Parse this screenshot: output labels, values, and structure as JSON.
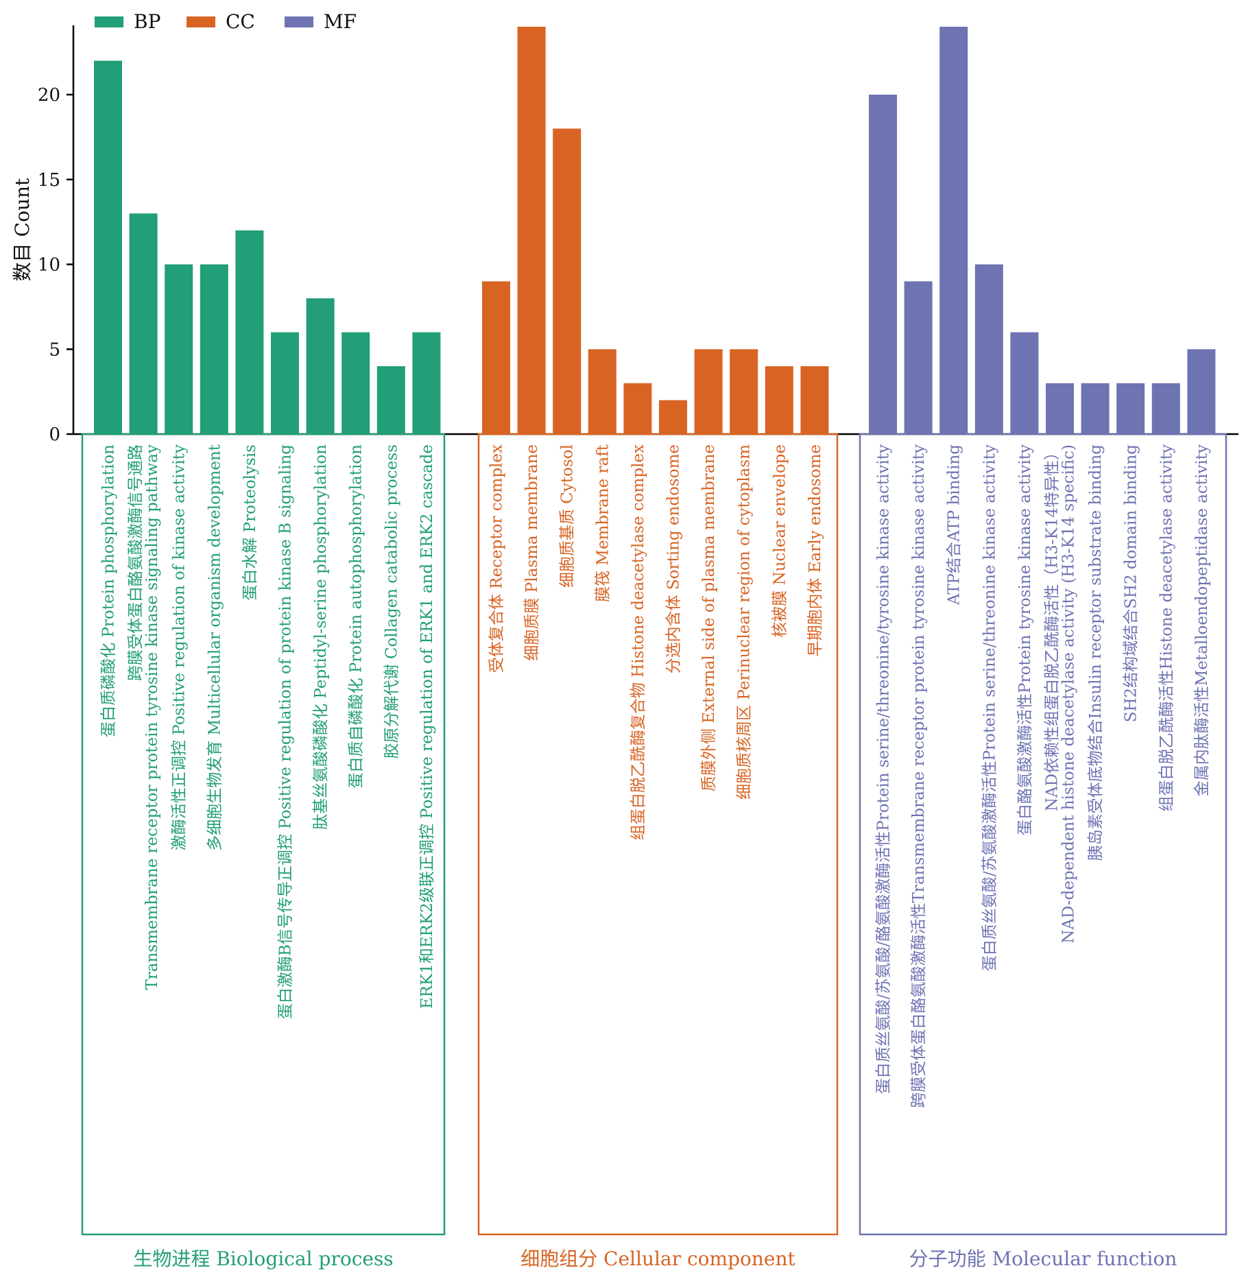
{
  "chart_data": {
    "type": "bar",
    "ylabel": "数目 Count",
    "yticks": [
      0,
      5,
      10,
      15,
      20
    ],
    "ylim": [
      0,
      24
    ],
    "legend": {
      "position": "top-left",
      "items": [
        {
          "label": "BP",
          "color": "#229e78"
        },
        {
          "label": "CC",
          "color": "#d86424"
        },
        {
          "label": "MF",
          "color": "#6e73b2"
        }
      ]
    },
    "groups": [
      {
        "key": "BP",
        "title": "生物进程 Biological process",
        "color": "#229e78",
        "bars": [
          {
            "label": [
              "蛋白质磷酸化 Protein phosphorylation"
            ],
            "value": 22
          },
          {
            "label": [
              "跨膜受体蛋白酪氨酸激酶信号通路",
              "Transmembrane receptor protein tyrosine kinase signaling pathway"
            ],
            "value": 13
          },
          {
            "label": [
              "激酶活性正调控 Positive regulation of kinase activity"
            ],
            "value": 10
          },
          {
            "label": [
              "多细胞生物发育 Multicellular organism development"
            ],
            "value": 10
          },
          {
            "label": [
              "蛋白水解 Proteolysis"
            ],
            "value": 12
          },
          {
            "label": [
              "蛋白激酶B信号传导正调控 Positive regulation of protein kinase B signaling"
            ],
            "value": 6
          },
          {
            "label": [
              "肽基丝氨酸磷酸化 Peptidyl-serine phosphorylation"
            ],
            "value": 8
          },
          {
            "label": [
              "蛋白质自磷酸化 Protein autophosphorylation"
            ],
            "value": 6
          },
          {
            "label": [
              "胶原分解代谢 Collagen catabolic process"
            ],
            "value": 4
          },
          {
            "label": [
              "ERK1和ERK2级联正调控 Positive regulation of ERK1 and ERK2 cascade"
            ],
            "value": 6
          }
        ]
      },
      {
        "key": "CC",
        "title": "细胞组分 Cellular component",
        "color": "#d86424",
        "bars": [
          {
            "label": [
              "受体复合体 Receptor complex"
            ],
            "value": 9
          },
          {
            "label": [
              "细胞质膜 Plasma membrane"
            ],
            "value": 24
          },
          {
            "label": [
              "细胞质基质 Cytosol"
            ],
            "value": 18
          },
          {
            "label": [
              "膜筏 Membrane raft"
            ],
            "value": 5
          },
          {
            "label": [
              "组蛋白脱乙酰酶复合物 Histone deacetylase complex"
            ],
            "value": 3
          },
          {
            "label": [
              "分选内含体 Sorting endosome"
            ],
            "value": 2
          },
          {
            "label": [
              "质膜外侧 External side of plasma membrane"
            ],
            "value": 5
          },
          {
            "label": [
              "细胞质核周区 Perinuclear region of cytoplasm"
            ],
            "value": 5
          },
          {
            "label": [
              "核被膜 Nuclear envelope"
            ],
            "value": 4
          },
          {
            "label": [
              "早期胞内体 Early endosome"
            ],
            "value": 4
          }
        ]
      },
      {
        "key": "MF",
        "title": "分子功能 Molecular function",
        "color": "#6e73b2",
        "bars": [
          {
            "label": [
              "蛋白质丝氨酸/苏氨酸/酪氨酸激酶活性Protein serine/threonine/tyrosine kinase activity"
            ],
            "value": 20
          },
          {
            "label": [
              "跨膜受体蛋白酪氨酸激酶活性Transmembrane receptor protein tyrosine kinase activity"
            ],
            "value": 9
          },
          {
            "label": [
              "ATP结合ATP binding"
            ],
            "value": 24
          },
          {
            "label": [
              "蛋白质丝氨酸/苏氨酸激酶活性Protein serine/threonine kinase activity"
            ],
            "value": 10
          },
          {
            "label": [
              "蛋白酪氨酸激酶活性Protein tyrosine kinase activity"
            ],
            "value": 6
          },
          {
            "label": [
              "NAD依赖性组蛋白脱乙酰酶活性（H3-K14特异性）",
              "NAD-dependent histone deacetylase activity (H3-K14 specific)"
            ],
            "value": 3
          },
          {
            "label": [
              "胰岛素受体底物结合Insulin receptor substrate binding"
            ],
            "value": 3
          },
          {
            "label": [
              "SH2结构域结合SH2 domain binding"
            ],
            "value": 3
          },
          {
            "label": [
              "组蛋白脱乙酰酶活性Histone deacetylase activity"
            ],
            "value": 3
          },
          {
            "label": [
              "金属内肽酶活性Metalloendopeptidase activity"
            ],
            "value": 5
          }
        ]
      }
    ]
  }
}
